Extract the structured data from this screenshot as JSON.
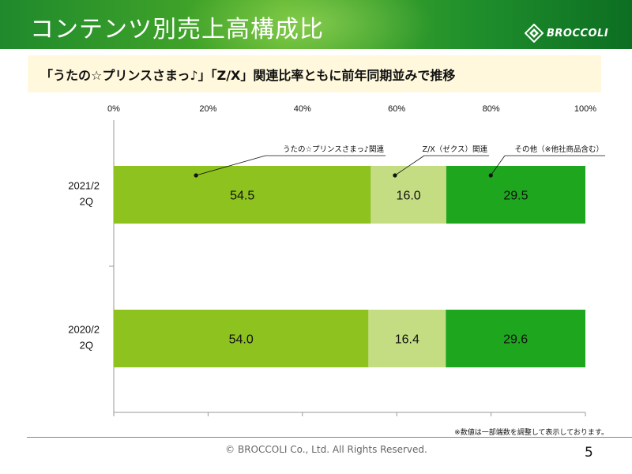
{
  "slide": {
    "title": "コンテンツ別売上高構成比",
    "logo_text": "BROCCOLI",
    "headline": "「うたの☆プリンスさまっ♪」「Z/X」関連比率ともに前年同期並みで推移",
    "note": "※数値は一部端数を調整して表示しております。",
    "footer": "© BROCCOLI Co., Ltd. All Rights Reserved.",
    "page_number": "5"
  },
  "colors": {
    "header": "#3a9f2a",
    "headline_bg": "#fff8dc",
    "series": [
      "#8dc21f",
      "#c5dd82",
      "#1fa61f"
    ]
  },
  "chart_data": {
    "type": "bar",
    "orientation": "horizontal",
    "stacked": true,
    "xlim": [
      0,
      100
    ],
    "x_ticks": [
      "0%",
      "20%",
      "40%",
      "60%",
      "80%",
      "100%"
    ],
    "categories": [
      {
        "line1": "2021/2",
        "line2": "2Q"
      },
      {
        "line1": "2020/2",
        "line2": "2Q"
      }
    ],
    "series": [
      {
        "name": "うたの☆プリンスさまっ♪関連",
        "values": [
          54.5,
          54.0
        ],
        "labels": [
          "54.5",
          "54.0"
        ]
      },
      {
        "name": "Z/X（ゼクス）関連",
        "values": [
          16.0,
          16.4
        ],
        "labels": [
          "16.0",
          "16.4"
        ]
      },
      {
        "name": "その他（※他社商品含む）",
        "values": [
          29.5,
          29.6
        ],
        "labels": [
          "29.5",
          "29.6"
        ]
      }
    ],
    "legend": "callouts-top",
    "grid": false
  }
}
